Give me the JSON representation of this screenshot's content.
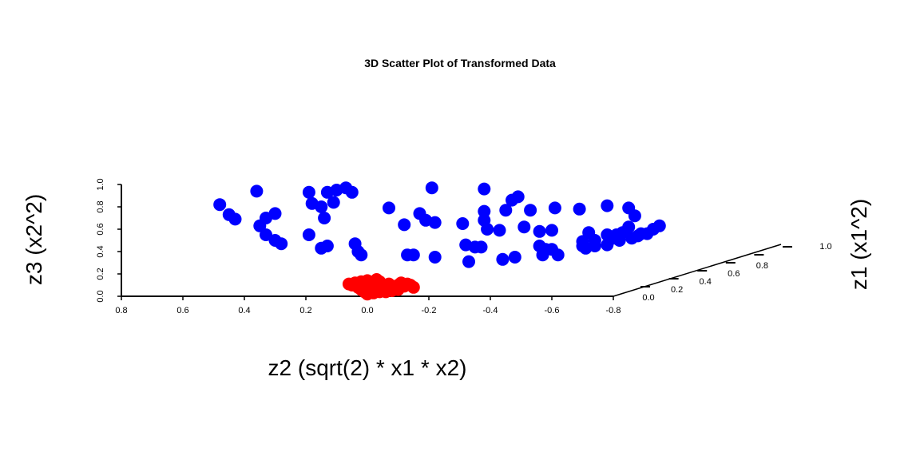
{
  "chart_data": {
    "type": "scatter3d",
    "title": "3D Scatter Plot of Transformed Data",
    "xlabel": "z2 (sqrt(2) * x1 * x2)",
    "ylabel": "z1 (x1^2)",
    "zlabel": "z3 (x2^2)",
    "x_ticks": [
      "0.8",
      "0.6",
      "0.4",
      "0.2",
      "0.0",
      "-0.2",
      "-0.4",
      "-0.6",
      "-0.8"
    ],
    "y_ticks": [
      "0.0",
      "0.2",
      "0.4",
      "0.6",
      "0.8",
      "1.0"
    ],
    "z_ticks": [
      "0.0",
      "0.2",
      "0.4",
      "0.6",
      "0.8",
      "1.0"
    ],
    "xlim": [
      0.8,
      -0.8
    ],
    "ylim": [
      0,
      1
    ],
    "zlim": [
      0,
      1
    ],
    "grid": false,
    "series": [
      {
        "color": "#0000ff",
        "points": [
          [
            0.48,
            0.0,
            0.82
          ],
          [
            0.45,
            0.0,
            0.73
          ],
          [
            0.43,
            0.0,
            0.69
          ],
          [
            0.36,
            0.0,
            0.94
          ],
          [
            0.33,
            0.0,
            0.7
          ],
          [
            0.35,
            0.0,
            0.63
          ],
          [
            0.3,
            0.0,
            0.74
          ],
          [
            0.33,
            0.0,
            0.55
          ],
          [
            0.3,
            0.0,
            0.5
          ],
          [
            0.28,
            0.0,
            0.47
          ],
          [
            0.18,
            0.0,
            0.83
          ],
          [
            0.19,
            0.0,
            0.93
          ],
          [
            0.15,
            0.0,
            0.8
          ],
          [
            0.13,
            0.0,
            0.93
          ],
          [
            0.1,
            0.0,
            0.95
          ],
          [
            0.07,
            0.0,
            0.97
          ],
          [
            0.05,
            0.0,
            0.93
          ],
          [
            0.11,
            0.0,
            0.84
          ],
          [
            0.14,
            0.0,
            0.7
          ],
          [
            0.19,
            0.0,
            0.55
          ],
          [
            0.15,
            0.0,
            0.43
          ],
          [
            0.13,
            0.0,
            0.45
          ],
          [
            0.04,
            0.0,
            0.47
          ],
          [
            0.03,
            0.0,
            0.4
          ],
          [
            0.02,
            0.0,
            0.37
          ],
          [
            -0.07,
            0.0,
            0.79
          ],
          [
            -0.12,
            0.0,
            0.64
          ],
          [
            -0.17,
            0.0,
            0.74
          ],
          [
            -0.19,
            0.0,
            0.68
          ],
          [
            -0.21,
            0.0,
            0.97
          ],
          [
            -0.22,
            0.0,
            0.66
          ],
          [
            -0.13,
            0.0,
            0.37
          ],
          [
            -0.15,
            0.0,
            0.37
          ],
          [
            -0.22,
            0.0,
            0.35
          ],
          [
            -0.31,
            0.0,
            0.65
          ],
          [
            -0.32,
            0.0,
            0.46
          ],
          [
            -0.33,
            0.0,
            0.31
          ],
          [
            -0.35,
            0.0,
            0.44
          ],
          [
            -0.37,
            0.0,
            0.44
          ],
          [
            -0.38,
            0.0,
            0.96
          ],
          [
            -0.38,
            0.0,
            0.76
          ],
          [
            -0.38,
            0.0,
            0.68
          ],
          [
            -0.39,
            0.0,
            0.6
          ],
          [
            -0.43,
            0.0,
            0.59
          ],
          [
            -0.44,
            0.0,
            0.33
          ],
          [
            -0.47,
            0.0,
            0.86
          ],
          [
            -0.45,
            0.0,
            0.77
          ],
          [
            -0.49,
            0.0,
            0.89
          ],
          [
            -0.48,
            0.0,
            0.35
          ],
          [
            -0.51,
            0.0,
            0.62
          ],
          [
            -0.53,
            0.0,
            0.77
          ],
          [
            -0.56,
            0.0,
            0.58
          ],
          [
            -0.56,
            0.0,
            0.45
          ],
          [
            -0.57,
            0.0,
            0.37
          ],
          [
            -0.58,
            0.0,
            0.42
          ],
          [
            -0.6,
            0.0,
            0.59
          ],
          [
            -0.6,
            0.0,
            0.42
          ],
          [
            -0.61,
            0.0,
            0.79
          ],
          [
            -0.62,
            0.0,
            0.37
          ],
          [
            -0.69,
            0.0,
            0.78
          ],
          [
            -0.7,
            0.0,
            0.49
          ],
          [
            -0.7,
            0.0,
            0.45
          ],
          [
            -0.71,
            0.0,
            0.43
          ],
          [
            -0.72,
            0.0,
            0.57
          ],
          [
            -0.74,
            0.0,
            0.45
          ],
          [
            -0.78,
            0.0,
            0.46
          ],
          [
            -0.78,
            0.0,
            0.81
          ],
          [
            -0.78,
            0.0,
            0.55
          ],
          [
            -0.8,
            0.0,
            0.52
          ],
          [
            -0.81,
            0.0,
            0.55
          ],
          [
            -0.83,
            0.0,
            0.57
          ],
          [
            -0.85,
            0.0,
            0.62
          ],
          [
            -0.85,
            0.0,
            0.79
          ],
          [
            -0.87,
            0.0,
            0.72
          ],
          [
            -0.89,
            0.0,
            0.56
          ],
          [
            -0.91,
            0.0,
            0.56
          ],
          [
            -0.93,
            0.0,
            0.6
          ],
          [
            -0.95,
            0.0,
            0.63
          ],
          [
            -0.82,
            0.0,
            0.5
          ],
          [
            -0.86,
            0.0,
            0.52
          ],
          [
            -0.88,
            0.0,
            0.54
          ],
          [
            -0.74,
            0.0,
            0.5
          ]
        ]
      },
      {
        "color": "#ff0000",
        "points": [
          [
            0.06,
            0.0,
            0.11
          ],
          [
            0.05,
            0.0,
            0.1
          ],
          [
            0.04,
            0.0,
            0.12
          ],
          [
            0.03,
            0.0,
            0.09
          ],
          [
            0.02,
            0.0,
            0.13
          ],
          [
            0.01,
            0.0,
            0.1
          ],
          [
            0.0,
            0.0,
            0.14
          ],
          [
            -0.01,
            0.0,
            0.12
          ],
          [
            -0.02,
            0.0,
            0.09
          ],
          [
            -0.03,
            0.0,
            0.15
          ],
          [
            -0.04,
            0.0,
            0.13
          ],
          [
            -0.05,
            0.0,
            0.1
          ],
          [
            0.02,
            0.0,
            0.06
          ],
          [
            0.01,
            0.0,
            0.04
          ],
          [
            0.0,
            0.0,
            0.02
          ],
          [
            -0.01,
            0.0,
            0.05
          ],
          [
            -0.02,
            0.0,
            0.03
          ],
          [
            -0.03,
            0.0,
            0.06
          ],
          [
            -0.04,
            0.0,
            0.04
          ],
          [
            -0.06,
            0.0,
            0.08
          ],
          [
            -0.07,
            0.0,
            0.11
          ],
          [
            -0.08,
            0.0,
            0.09
          ],
          [
            -0.09,
            0.0,
            0.07
          ],
          [
            -0.1,
            0.0,
            0.1
          ],
          [
            -0.11,
            0.0,
            0.12
          ],
          [
            -0.12,
            0.0,
            0.09
          ],
          [
            -0.13,
            0.0,
            0.11
          ],
          [
            -0.14,
            0.0,
            0.1
          ],
          [
            -0.15,
            0.0,
            0.08
          ],
          [
            -0.1,
            0.0,
            0.06
          ],
          [
            -0.08,
            0.0,
            0.05
          ],
          [
            -0.06,
            0.0,
            0.04
          ],
          [
            0.03,
            0.0,
            0.08
          ],
          [
            0.0,
            0.0,
            0.08
          ],
          [
            -0.05,
            0.0,
            0.07
          ],
          [
            -0.02,
            0.0,
            0.11
          ]
        ]
      }
    ]
  }
}
